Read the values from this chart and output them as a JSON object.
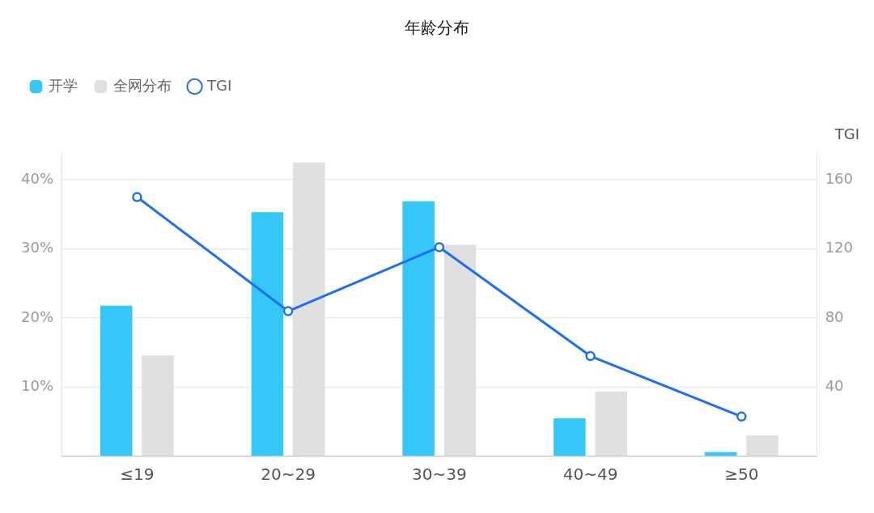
{
  "chart_data": {
    "type": "bar",
    "title": "年龄分布",
    "y2label": "TGI",
    "categories": [
      "≤19",
      "20~29",
      "30~39",
      "40~49",
      "≥50"
    ],
    "series": [
      {
        "name": "开学",
        "color": "#36c7f9",
        "values": [
          21.8,
          35.3,
          36.9,
          5.5,
          0.6
        ]
      },
      {
        "name": "全网分布",
        "color": "#e0e0e0",
        "values": [
          14.6,
          42.5,
          30.6,
          9.4,
          3.0
        ]
      },
      {
        "name": "TGI",
        "type": "line",
        "axis": "y2",
        "color": "#1f6ff0",
        "values": [
          150,
          84,
          121,
          58,
          23
        ]
      }
    ],
    "ylim": [
      0,
      44
    ],
    "yticks": [
      {
        "value": 0,
        "label": null
      },
      {
        "value": 10,
        "label": "10%"
      },
      {
        "value": 20,
        "label": "20%"
      },
      {
        "value": 30,
        "label": "30%"
      },
      {
        "value": 40,
        "label": "40%"
      }
    ],
    "y2lim": [
      0,
      176
    ],
    "y2ticks": [
      40,
      80,
      120,
      160
    ],
    "grid": "y",
    "legend": "top left",
    "marker": "circle"
  }
}
